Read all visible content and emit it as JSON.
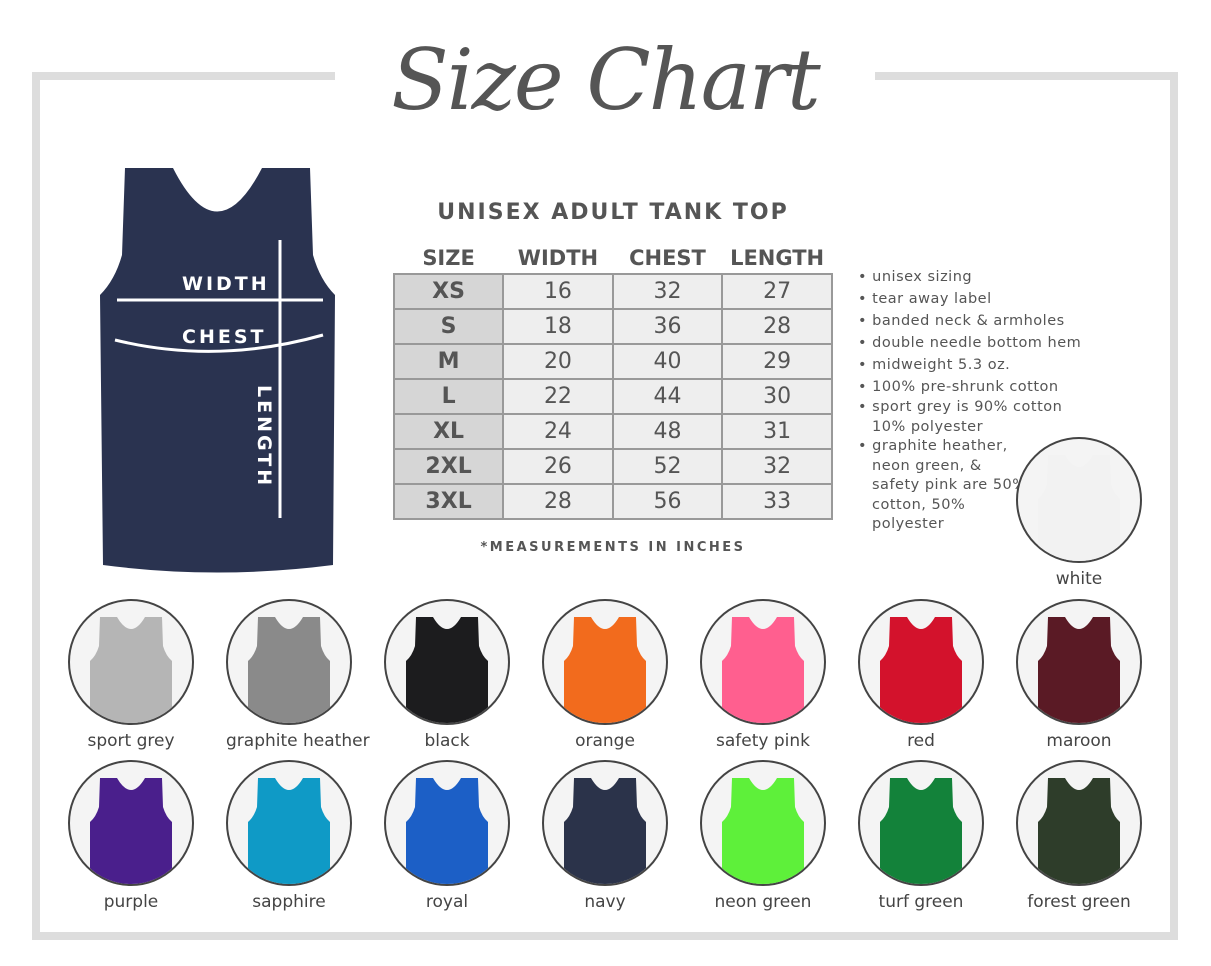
{
  "title": "Size Chart",
  "product": "UNISEX ADULT TANK TOP",
  "tank_color": "#2a3350",
  "measure_labels": {
    "width": "WIDTH",
    "chest": "CHEST",
    "length": "LENGTH"
  },
  "table": {
    "headers": [
      "SIZE",
      "WIDTH",
      "CHEST",
      "LENGTH"
    ],
    "rows": [
      [
        "XS",
        "16",
        "32",
        "27"
      ],
      [
        "S",
        "18",
        "36",
        "28"
      ],
      [
        "M",
        "20",
        "40",
        "29"
      ],
      [
        "L",
        "22",
        "44",
        "30"
      ],
      [
        "XL",
        "24",
        "48",
        "31"
      ],
      [
        "2XL",
        "26",
        "52",
        "32"
      ],
      [
        "3XL",
        "28",
        "56",
        "33"
      ]
    ]
  },
  "note": "*MEASUREMENTS IN INCHES",
  "features": [
    "unisex sizing",
    "tear away label",
    "banded neck & armholes",
    "double needle bottom hem",
    "midweight 5.3 oz.",
    "100% pre-shrunk cotton",
    "sport grey is 90% cotton 10% polyester",
    "graphite heather, neon green, & safety pink are 50% cotton, 50% polyester"
  ],
  "colors": [
    {
      "name": "white",
      "hex": "#f2f2f2"
    },
    {
      "name": "sport grey",
      "hex": "#b5b5b5"
    },
    {
      "name": "graphite heather",
      "hex": "#8a8a8a"
    },
    {
      "name": "black",
      "hex": "#1c1c1e"
    },
    {
      "name": "orange",
      "hex": "#f26b1d"
    },
    {
      "name": "safety pink",
      "hex": "#ff5f8f"
    },
    {
      "name": "red",
      "hex": "#d3122c"
    },
    {
      "name": "maroon",
      "hex": "#5a1a25"
    },
    {
      "name": "purple",
      "hex": "#4a1f8c"
    },
    {
      "name": "sapphire",
      "hex": "#0f9ac6"
    },
    {
      "name": "royal",
      "hex": "#1c5fc6"
    },
    {
      "name": "navy",
      "hex": "#2b334a"
    },
    {
      "name": "neon green",
      "hex": "#5ef03a"
    },
    {
      "name": "turf green",
      "hex": "#13823a"
    },
    {
      "name": "forest green",
      "hex": "#2e3d2a"
    }
  ]
}
